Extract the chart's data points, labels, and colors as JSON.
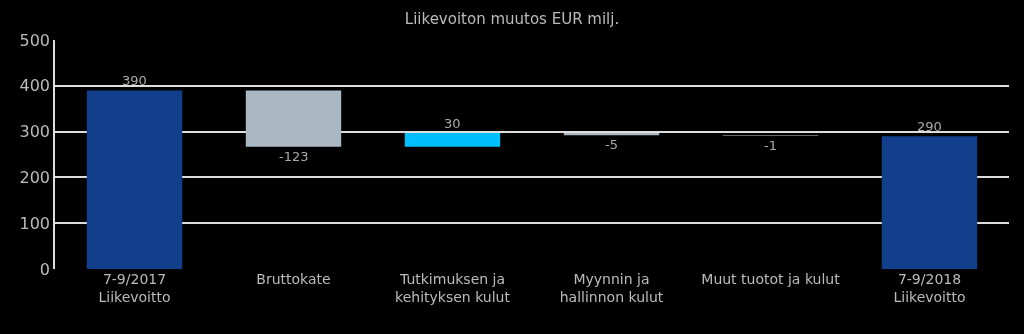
{
  "chart_data": {
    "type": "bar",
    "title": "Liikevoiton muutos EUR milj.",
    "categories": [
      "7-9/2017\nLiikevoitto",
      "Bruttokate",
      "Tutkimuksen ja\nkehityksen kulut",
      "Myynnin ja\nhallinnon kulut",
      "Muut tuotot ja kulut",
      "7-9/2018\nLiikevoitto"
    ],
    "values": [
      390,
      -123,
      30,
      -5,
      -1,
      290
    ],
    "base": [
      0,
      390,
      267,
      297,
      292,
      0
    ],
    "colors": [
      "#123f8c",
      "#a9b8c3",
      "#00bfff",
      "#a9b8c3",
      "#666666",
      "#123f8c"
    ],
    "data_labels": true,
    "ylim": [
      0,
      500
    ],
    "yticks": [
      0,
      100,
      200,
      300,
      400,
      500
    ],
    "grid": "y",
    "legend": false
  }
}
